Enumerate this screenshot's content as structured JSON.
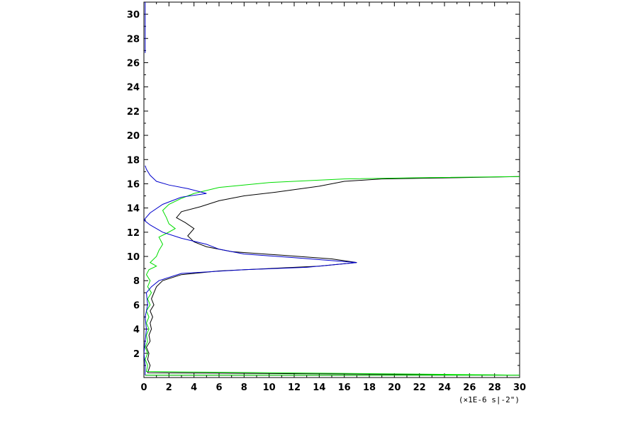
{
  "chart_data": {
    "type": "line",
    "title": "",
    "xlabel": "",
    "ylabel": "",
    "x_unit_label": "(×1E-6 s|-2\")",
    "xlim": [
      0,
      30
    ],
    "ylim": [
      0,
      31
    ],
    "x_ticks": [
      0,
      2,
      4,
      6,
      8,
      10,
      12,
      14,
      16,
      18,
      20,
      22,
      24,
      26,
      28,
      30
    ],
    "y_ticks": [
      2,
      4,
      6,
      8,
      10,
      12,
      14,
      16,
      18,
      20,
      22,
      24,
      26,
      28,
      30
    ],
    "x_tick_labels": [
      "0",
      "2",
      "4",
      "6",
      "8",
      "10",
      "12",
      "14",
      "16",
      "18",
      "20",
      "22",
      "24",
      "26",
      "28",
      "30"
    ],
    "y_tick_labels": [
      "2",
      "4",
      "6",
      "8",
      "10",
      "12",
      "14",
      "16",
      "18",
      "20",
      "22",
      "24",
      "26",
      "28",
      "30"
    ],
    "grid": false,
    "series": [
      {
        "color": "#000000",
        "points": [
          [
            0.1,
            0.2
          ],
          [
            30,
            0.2
          ],
          [
            0.3,
            0.4
          ],
          [
            0.5,
            1.0
          ],
          [
            0.3,
            1.5
          ],
          [
            0.4,
            2.0
          ],
          [
            0.2,
            2.5
          ],
          [
            0.5,
            3.0
          ],
          [
            0.4,
            3.5
          ],
          [
            0.6,
            4.0
          ],
          [
            0.5,
            4.5
          ],
          [
            0.7,
            5.0
          ],
          [
            0.5,
            5.5
          ],
          [
            0.8,
            6.0
          ],
          [
            0.6,
            6.5
          ],
          [
            0.8,
            7.0
          ],
          [
            1.0,
            7.5
          ],
          [
            1.5,
            8.0
          ],
          [
            3.0,
            8.5
          ],
          [
            6.0,
            8.8
          ],
          [
            10.0,
            9.0
          ],
          [
            14.0,
            9.2
          ],
          [
            17.0,
            9.5
          ],
          [
            15.0,
            9.8
          ],
          [
            11.0,
            10.1
          ],
          [
            7.0,
            10.4
          ],
          [
            5.0,
            10.8
          ],
          [
            4.0,
            11.2
          ],
          [
            3.5,
            11.7
          ],
          [
            4.0,
            12.3
          ],
          [
            3.3,
            12.8
          ],
          [
            2.6,
            13.2
          ],
          [
            3.0,
            13.7
          ],
          [
            4.5,
            14.1
          ],
          [
            6.0,
            14.6
          ],
          [
            8.0,
            15.0
          ],
          [
            10.5,
            15.3
          ],
          [
            14.0,
            15.8
          ],
          [
            16.0,
            16.2
          ],
          [
            19.0,
            16.4
          ],
          [
            25.0,
            16.5
          ],
          [
            30.0,
            16.6
          ]
        ]
      },
      {
        "color": "#00dd00",
        "points": [
          [
            0.1,
            0.2
          ],
          [
            30,
            0.2
          ],
          [
            0.2,
            0.5
          ],
          [
            0.3,
            1.0
          ],
          [
            0.1,
            1.5
          ],
          [
            0.3,
            2.0
          ],
          [
            0.1,
            2.5
          ],
          [
            0.3,
            3.0
          ],
          [
            0.2,
            3.5
          ],
          [
            0.4,
            4.0
          ],
          [
            0.2,
            4.5
          ],
          [
            0.4,
            5.0
          ],
          [
            0.2,
            5.5
          ],
          [
            0.5,
            6.0
          ],
          [
            0.3,
            6.5
          ],
          [
            0.6,
            7.0
          ],
          [
            0.3,
            7.5
          ],
          [
            0.5,
            8.0
          ],
          [
            0.2,
            8.5
          ],
          [
            0.4,
            8.9
          ],
          [
            1.0,
            9.2
          ],
          [
            0.5,
            9.5
          ],
          [
            1.0,
            10.0
          ],
          [
            1.2,
            10.5
          ],
          [
            1.5,
            11.0
          ],
          [
            1.2,
            11.6
          ],
          [
            1.8,
            11.9
          ],
          [
            2.5,
            12.3
          ],
          [
            2.0,
            12.7
          ],
          [
            1.8,
            13.2
          ],
          [
            1.5,
            13.8
          ],
          [
            2.0,
            14.3
          ],
          [
            3.0,
            14.8
          ],
          [
            4.0,
            15.2
          ],
          [
            6.0,
            15.7
          ],
          [
            10.0,
            16.1
          ],
          [
            16.0,
            16.4
          ],
          [
            22.0,
            16.5
          ],
          [
            30.0,
            16.6
          ]
        ]
      },
      {
        "color": "#0000cc",
        "points": [
          [
            0.1,
            0.2
          ],
          [
            0.1,
            1.0
          ],
          [
            0.0,
            2.0
          ],
          [
            0.1,
            3.0
          ],
          [
            0.2,
            4.0
          ],
          [
            0.1,
            5.0
          ],
          [
            0.3,
            6.0
          ],
          [
            0.2,
            7.0
          ],
          [
            0.6,
            7.5
          ],
          [
            1.2,
            8.0
          ],
          [
            3.0,
            8.6
          ],
          [
            8.0,
            8.9
          ],
          [
            13.0,
            9.1
          ],
          [
            17.0,
            9.5
          ],
          [
            12.0,
            9.9
          ],
          [
            8.0,
            10.2
          ],
          [
            6.0,
            10.6
          ],
          [
            5.0,
            11.0
          ],
          [
            3.0,
            11.5
          ],
          [
            1.5,
            12.0
          ],
          [
            0.5,
            12.6
          ],
          [
            0.0,
            13.0
          ],
          [
            0.5,
            13.6
          ],
          [
            1.5,
            14.3
          ],
          [
            3.0,
            14.9
          ],
          [
            5.0,
            15.2
          ],
          [
            3.5,
            15.6
          ],
          [
            2.0,
            15.9
          ],
          [
            1.0,
            16.2
          ],
          [
            0.5,
            16.7
          ],
          [
            0.2,
            17.2
          ],
          [
            0.1,
            17.5
          ]
        ]
      },
      {
        "color": "#0000cc",
        "points": [
          [
            0.1,
            26.8
          ],
          [
            0.1,
            31.0
          ]
        ]
      }
    ]
  }
}
